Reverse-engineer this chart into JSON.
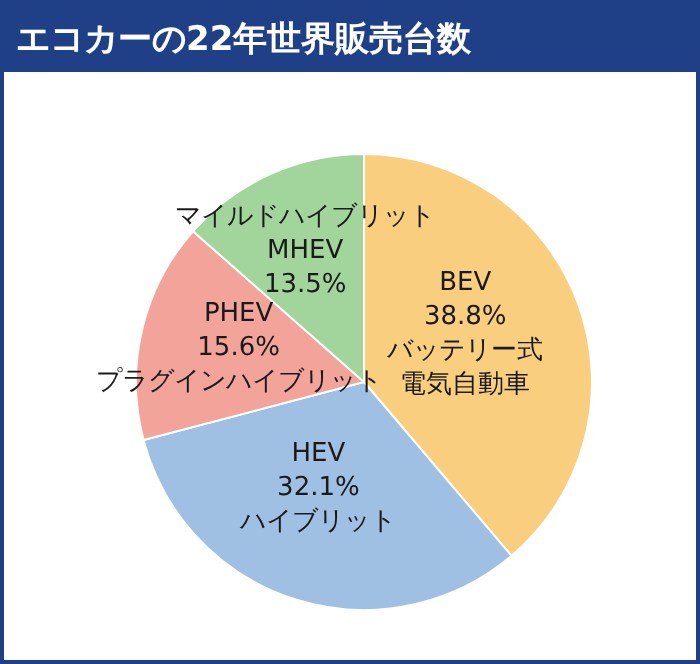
{
  "chart_data": {
    "type": "pie",
    "title": "エコカーの22年世界販売台数",
    "categories": [
      "BEV",
      "HEV",
      "PHEV",
      "MHEV"
    ],
    "values": [
      38.8,
      32.1,
      15.6,
      13.5
    ],
    "value_labels": [
      "38.8%",
      "32.1%",
      "15.6%",
      "13.5%"
    ],
    "colors": [
      "#f9cf7f",
      "#9fc0e2",
      "#f2a49b",
      "#a2d59c"
    ],
    "annotations": [
      "バッテリー式電気自動車",
      "ハイブリット",
      "プラグインハイブリット",
      "マイルドハイブリット"
    ],
    "legend": false
  }
}
